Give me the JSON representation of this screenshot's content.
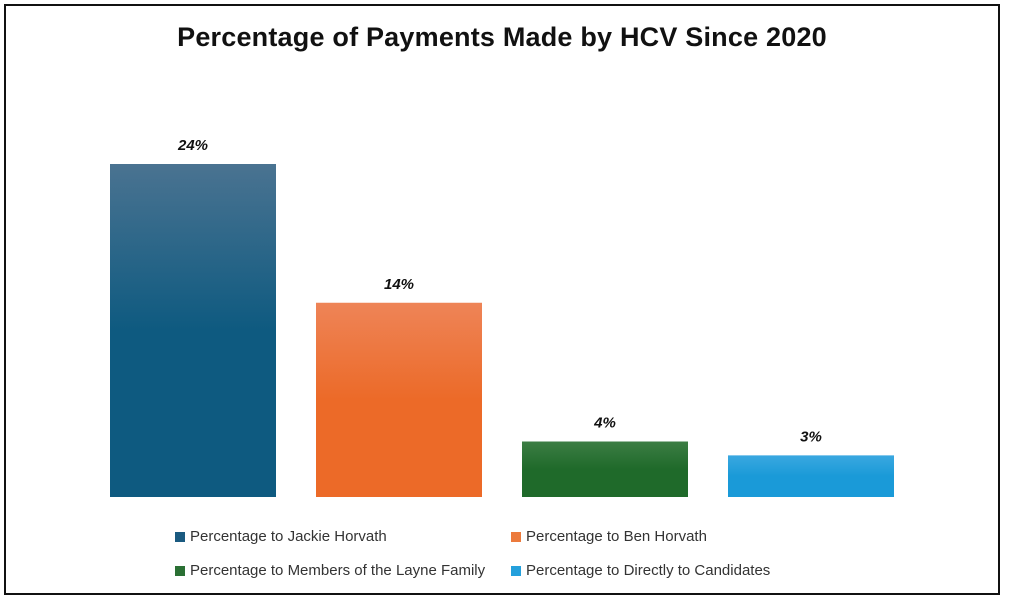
{
  "chart_data": {
    "type": "bar",
    "title": "Percentage of Payments Made by HCV Since 2020",
    "categories": [
      "Percentage to Jackie Horvath",
      "Percentage to Ben Horvath",
      "Percentage to Members of the Layne Family",
      "Percentage to Directly to Candidates"
    ],
    "values": [
      24,
      14,
      4,
      3
    ],
    "data_labels": [
      "24%",
      "14%",
      "4%",
      "3%"
    ],
    "colors": [
      "#0e5a80",
      "#ec6a28",
      "#1f6a2a",
      "#1a9ad8"
    ],
    "color_tops": [
      "#4a7391",
      "#ee8457",
      "#3c7d44",
      "#3aa8e0"
    ],
    "xlabel": "",
    "ylabel": "",
    "ylim": [
      0,
      24
    ],
    "grid": false,
    "legend_position": "bottom"
  }
}
